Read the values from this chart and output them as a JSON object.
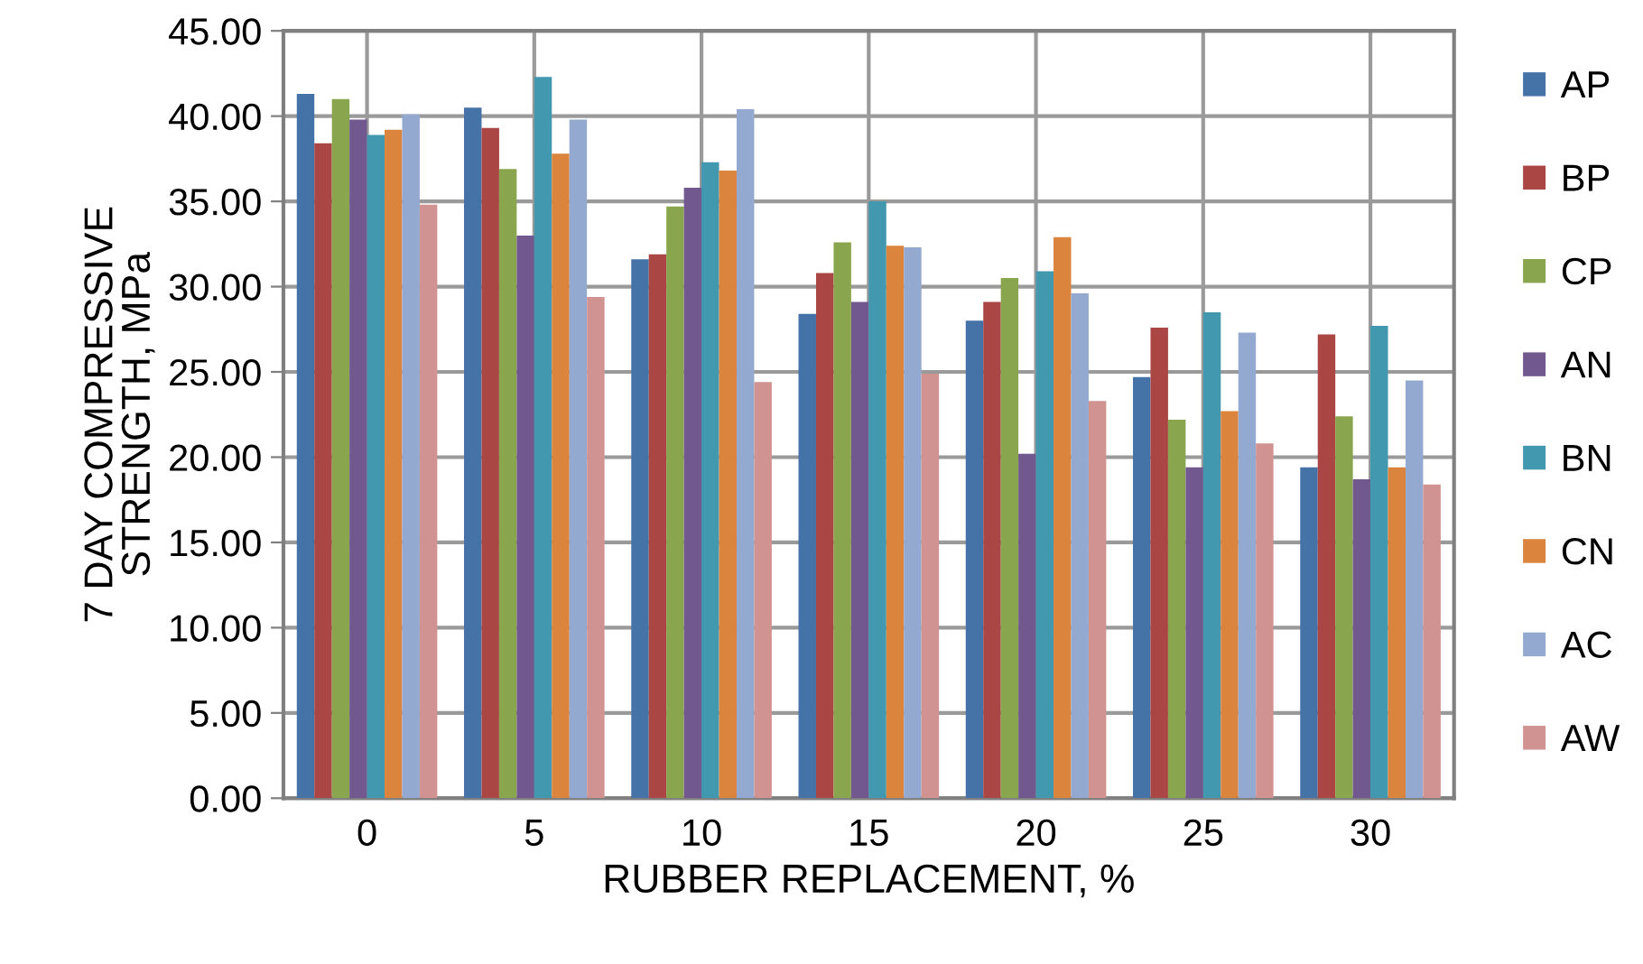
{
  "chart_data": {
    "type": "bar",
    "xlabel": "RUBBER REPLACEMENT, %",
    "ylabel": "7 DAY COMPRESSIVE\nSTRENGTH, MPa",
    "categories": [
      "0",
      "5",
      "10",
      "15",
      "20",
      "25",
      "30"
    ],
    "series": [
      {
        "name": "AP",
        "color": "#4572a7",
        "values": [
          41.3,
          40.5,
          31.6,
          28.4,
          28.0,
          24.7,
          19.4
        ]
      },
      {
        "name": "BP",
        "color": "#aa4643",
        "values": [
          38.4,
          39.3,
          31.9,
          30.8,
          29.1,
          27.6,
          27.2
        ]
      },
      {
        "name": "CP",
        "color": "#89a54e",
        "values": [
          41.0,
          36.9,
          34.7,
          32.6,
          30.5,
          22.2,
          22.4
        ]
      },
      {
        "name": "AN",
        "color": "#71588f",
        "values": [
          39.8,
          33.0,
          35.8,
          29.1,
          20.2,
          19.4,
          18.7
        ]
      },
      {
        "name": "BN",
        "color": "#4198af",
        "values": [
          38.9,
          42.3,
          37.3,
          35.0,
          30.9,
          28.5,
          27.7
        ]
      },
      {
        "name": "CN",
        "color": "#db843d",
        "values": [
          39.2,
          37.8,
          36.8,
          32.4,
          32.9,
          22.7,
          19.4
        ]
      },
      {
        "name": "AC",
        "color": "#93a9cf",
        "values": [
          40.1,
          39.8,
          40.4,
          32.3,
          29.6,
          27.3,
          24.5
        ]
      },
      {
        "name": "AW",
        "color": "#d19392",
        "values": [
          34.8,
          29.4,
          24.4,
          24.9,
          23.3,
          20.8,
          18.4
        ]
      }
    ],
    "ylim": [
      0,
      45
    ],
    "yticks": [
      {
        "value": 0,
        "label": "0.00"
      },
      {
        "value": 5,
        "label": "5.00"
      },
      {
        "value": 10,
        "label": "10.00"
      },
      {
        "value": 15,
        "label": "15.00"
      },
      {
        "value": 20,
        "label": "20.00"
      },
      {
        "value": 25,
        "label": "25.00"
      },
      {
        "value": 30,
        "label": "30.00"
      },
      {
        "value": 35,
        "label": "35.00"
      },
      {
        "value": 40,
        "label": "40.00"
      },
      {
        "value": 45,
        "label": "45.00"
      }
    ],
    "grid": true,
    "legend": "right"
  }
}
